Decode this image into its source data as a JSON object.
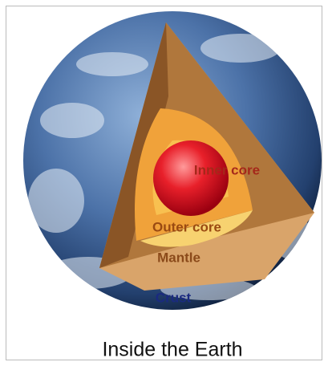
{
  "title": "Inside the Earth",
  "layers": [
    {
      "label": "Inner core"
    },
    {
      "label": "Outer core"
    },
    {
      "label": "Mantle"
    },
    {
      "label": "Crust"
    }
  ]
}
